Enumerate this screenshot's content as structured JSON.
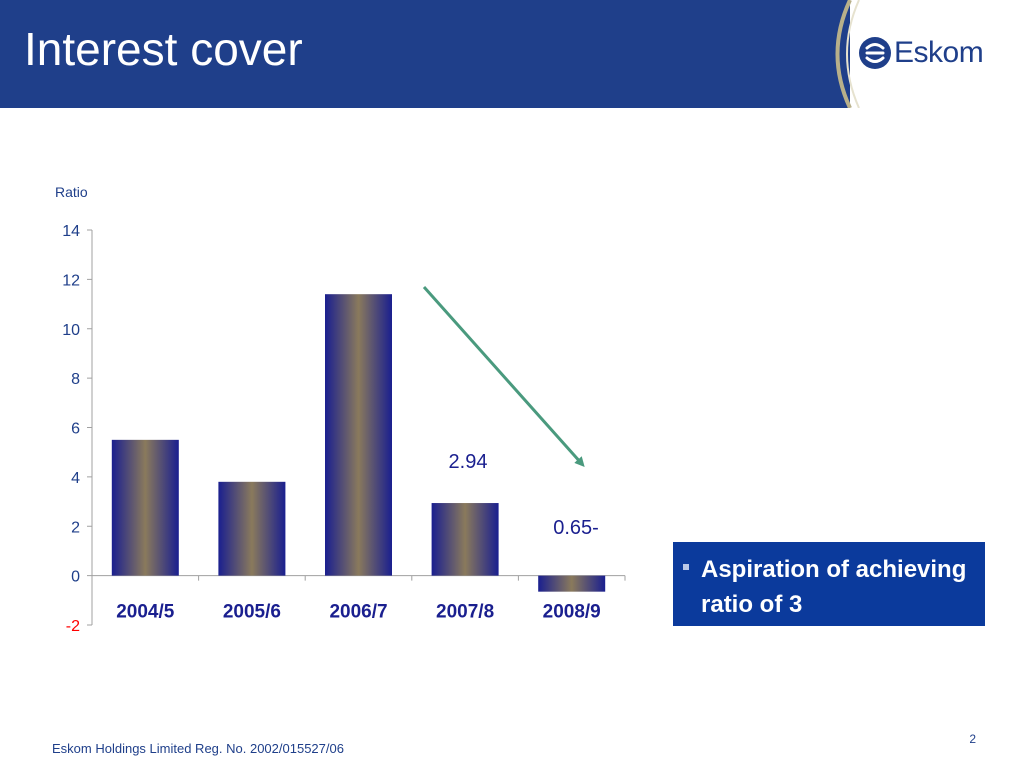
{
  "slide": {
    "title": "Interest cover",
    "logo_text": "Eskom",
    "aspiration_text": "Aspiration of achieving ratio of 3",
    "footer_text": "Eskom Holdings Limited Reg. No. 2002/015527/06",
    "page_number": "2"
  },
  "colors": {
    "header": "#1f3f8a",
    "bar_edge": "#1a1f8f",
    "bar_center": "#8a7a5c",
    "trend_arrow": "#4a9a7e",
    "aspiration_box": "#0b3a9c",
    "negative_tick": "#ff0000"
  },
  "chart_data": {
    "type": "bar",
    "ylabel": "Ratio",
    "categories": [
      "2004/5",
      "2005/6",
      "2006/7",
      "2007/8",
      "2008/9"
    ],
    "values": [
      5.5,
      3.8,
      11.4,
      2.94,
      -0.65
    ],
    "data_labels": [
      "",
      "",
      "",
      "2.94",
      "0.65-"
    ],
    "yticks": [
      "14",
      "12",
      "10",
      "8",
      "6",
      "4",
      "2",
      "0",
      "-2"
    ],
    "ytick_values": [
      14,
      12,
      10,
      8,
      6,
      4,
      2,
      0,
      -2
    ],
    "ylim": [
      -2,
      14
    ],
    "grid": false,
    "legend": "none",
    "annotations": [
      {
        "type": "arrow",
        "from": [
          "2007/8",
          11.7
        ],
        "to": [
          "2008/9",
          4.5
        ],
        "meaning": "declining trend"
      }
    ]
  }
}
